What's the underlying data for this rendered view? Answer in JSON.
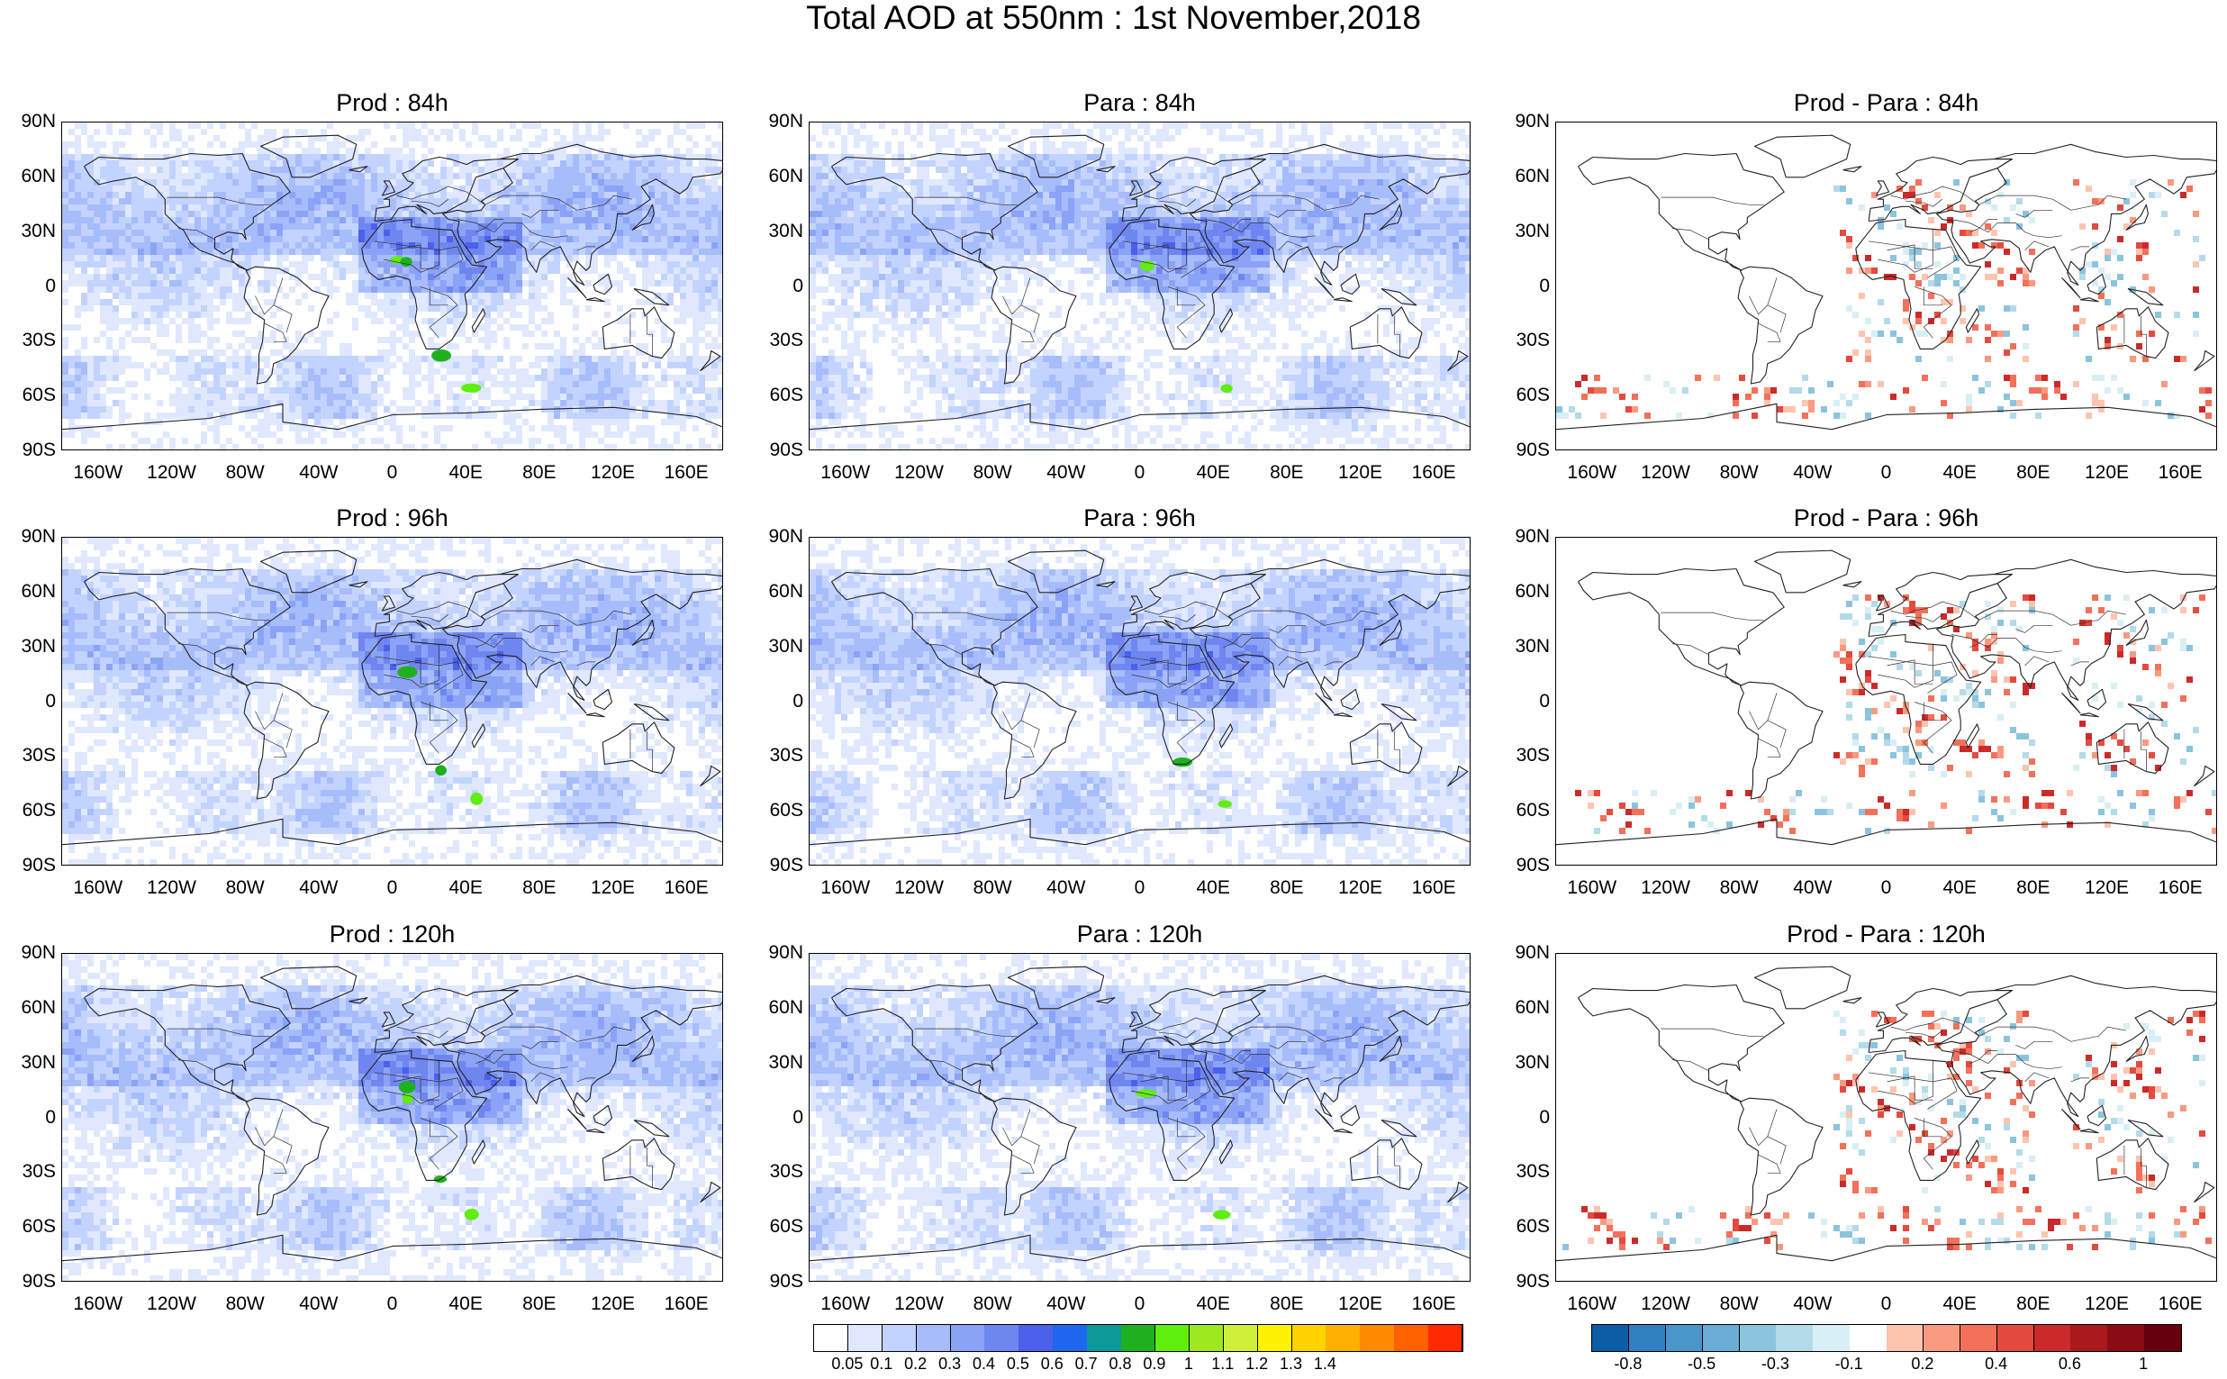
{
  "title": "Total AOD at 550nm : 1st November,2018",
  "lat_labels": [
    "90N",
    "60N",
    "30N",
    "0",
    "30S",
    "60S",
    "90S"
  ],
  "lon_labels": [
    "160W",
    "120W",
    "80W",
    "40W",
    "0",
    "40E",
    "80E",
    "120E",
    "160E"
  ],
  "panels": [
    {
      "title": "Prod : 84h",
      "kind": "aod",
      "seed": 11
    },
    {
      "title": "Para : 84h",
      "kind": "aod",
      "seed": 23
    },
    {
      "title": "Prod - Para : 84h",
      "kind": "diff",
      "seed": 37
    },
    {
      "title": "Prod : 96h",
      "kind": "aod",
      "seed": 41
    },
    {
      "title": "Para : 96h",
      "kind": "aod",
      "seed": 53
    },
    {
      "title": "Prod - Para : 96h",
      "kind": "diff",
      "seed": 67
    },
    {
      "title": "Prod : 120h",
      "kind": "aod",
      "seed": 71
    },
    {
      "title": "Para : 120h",
      "kind": "aod",
      "seed": 83
    },
    {
      "title": "Prod - Para : 120h",
      "kind": "diff",
      "seed": 97
    }
  ],
  "aod_colorbar": {
    "colors": [
      "#ffffff",
      "#dfe8ff",
      "#c3d3ff",
      "#a7bcfb",
      "#8ba3f7",
      "#6f86f1",
      "#4c60ec",
      "#1f66f0",
      "#0a9a9a",
      "#1fb01f",
      "#5fee0e",
      "#9de81f",
      "#cef03a",
      "#fff200",
      "#ffd200",
      "#ffb000",
      "#ff8a00",
      "#ff6000",
      "#ff2a00"
    ],
    "labels": [
      "0.05",
      "0.1",
      "0.2",
      "0.3",
      "0.4",
      "0.5",
      "0.6",
      "0.7",
      "0.8",
      "0.9",
      "1",
      "1.1",
      "1.2",
      "1.3",
      "1.4"
    ]
  },
  "diff_colorbar": {
    "colors": [
      "#0b5ea5",
      "#2f7fc1",
      "#4a96cb",
      "#6badd6",
      "#8cc4dd",
      "#b3dbea",
      "#d9eff6",
      "#ffffff",
      "#fdc4b0",
      "#f99a81",
      "#f3705a",
      "#e54a3e",
      "#cc2a2a",
      "#a81a1c",
      "#8a0b13",
      "#66000d"
    ],
    "labels": [
      "-0.8",
      "-0.5",
      "-0.3",
      "-0.1",
      "0.2",
      "0.4",
      "0.6",
      "1"
    ]
  }
}
